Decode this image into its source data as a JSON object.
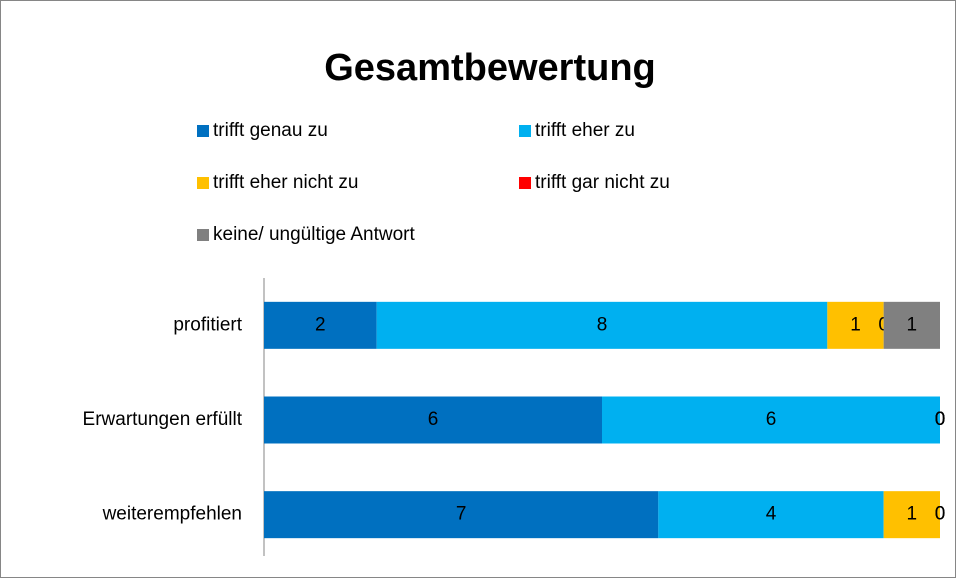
{
  "chart_data": {
    "type": "stacked-bar-horizontal",
    "title": "Gesamtbewertung",
    "categories": [
      "profitiert",
      "Erwartungen erfüllt",
      "weiterempfehlen"
    ],
    "series": [
      {
        "name": "trifft genau zu",
        "color": "#0070c0",
        "values": [
          2,
          6,
          7
        ]
      },
      {
        "name": "trifft eher zu",
        "color": "#00b0f0",
        "values": [
          8,
          6,
          4
        ]
      },
      {
        "name": "trifft eher nicht zu",
        "color": "#ffc000",
        "values": [
          1,
          0,
          1
        ]
      },
      {
        "name": "trifft gar nicht zu",
        "color": "#ff0000",
        "values": [
          0,
          0,
          0
        ]
      },
      {
        "name": "keine/ ungültige Antwort",
        "color": "#808080",
        "values": [
          1,
          0,
          0
        ]
      }
    ],
    "legend": "top"
  }
}
